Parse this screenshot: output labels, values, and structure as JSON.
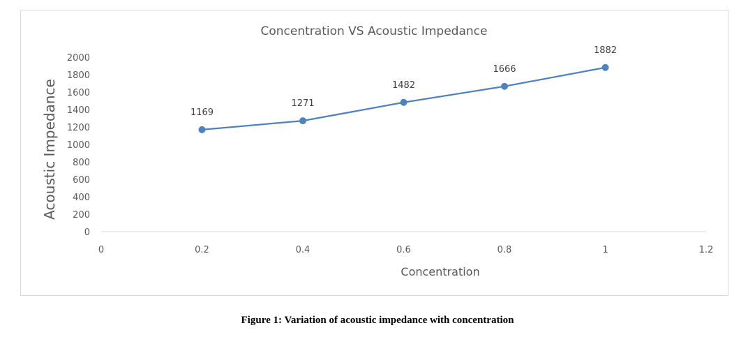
{
  "chart_data": {
    "type": "line",
    "title": "Concentration  VS Acoustic Impedance",
    "xlabel": "Concentration",
    "ylabel": "Acoustic Impedance",
    "xlim": [
      0,
      1.2
    ],
    "ylim": [
      0,
      2000
    ],
    "x_ticks": [
      "0",
      "0.2",
      "0.4",
      "0.6",
      "0.8",
      "1",
      "1.2"
    ],
    "y_ticks": [
      "0",
      "200",
      "400",
      "600",
      "800",
      "1000",
      "1200",
      "1400",
      "1600",
      "1800",
      "2000"
    ],
    "series": [
      {
        "x": [
          0.2,
          0.4,
          0.6,
          0.8,
          1.0
        ],
        "values": [
          1169,
          1271,
          1482,
          1666,
          1882
        ]
      }
    ],
    "data_labels": [
      "1169",
      "1271",
      "1482",
      "1666",
      "1882"
    ],
    "grid": false,
    "line_color": "#4f81bd"
  },
  "caption": "Figure 1: Variation of acoustic impedance with concentration"
}
